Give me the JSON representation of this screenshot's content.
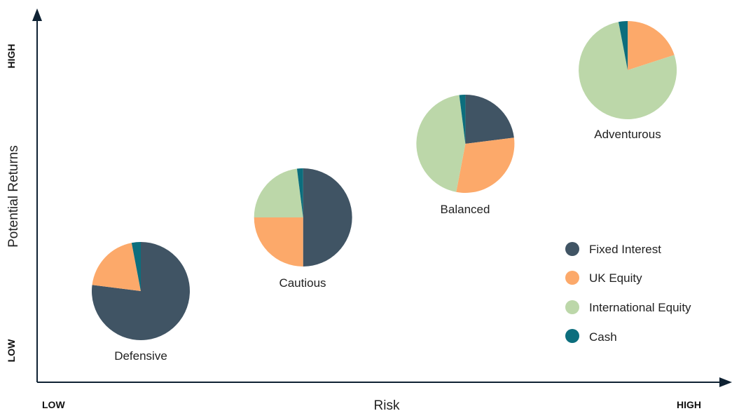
{
  "chart_data": {
    "type": "pie",
    "xlabel": "Risk",
    "ylabel": "Potential Returns",
    "x_low_label": "LOW",
    "x_high_label": "HIGH",
    "y_low_label": "LOW",
    "y_high_label": "HIGH",
    "legend_position": "bottom-right",
    "series_names": [
      "Fixed Interest",
      "UK Equity",
      "International Equity",
      "Cash"
    ],
    "colors": [
      "#405464",
      "#fca96a",
      "#bcd7a9",
      "#0c6e7d"
    ],
    "portfolios": [
      {
        "name": "Defensive",
        "risk": 1,
        "returns": 1,
        "values": [
          77,
          20,
          0,
          3
        ]
      },
      {
        "name": "Cautious",
        "risk": 2,
        "returns": 2,
        "values": [
          50,
          25,
          23,
          2
        ]
      },
      {
        "name": "Balanced",
        "risk": 3,
        "returns": 3,
        "values": [
          23,
          30,
          45,
          2
        ]
      },
      {
        "name": "Adventurous",
        "risk": 4,
        "returns": 4,
        "values": [
          0,
          20,
          77,
          3
        ]
      }
    ]
  }
}
